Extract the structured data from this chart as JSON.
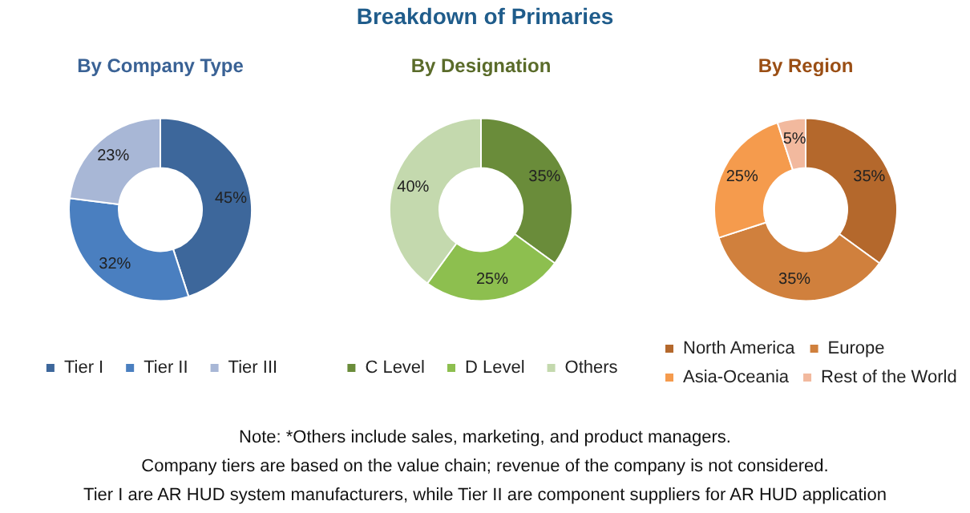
{
  "chart_data": [
    {
      "type": "other",
      "title": "Breakdown of Primaries",
      "annotations": [
        "Note: *Others include sales, marketing, and product managers.",
        "Company tiers are based on the value chain; revenue of the company is not considered.",
        "Tier I are AR HUD system manufacturers, while Tier II are component suppliers for AR HUD application"
      ]
    },
    {
      "type": "donut",
      "title": "By Company Type",
      "categories": [
        "Tier I",
        "Tier II",
        "Tier III"
      ],
      "values": [
        45,
        32,
        23
      ],
      "value_labels": [
        "45%",
        "32%",
        "23%"
      ],
      "colors": [
        "#3d679b",
        "#4a7fc0",
        "#a8b7d6"
      ],
      "legend": "bottom"
    },
    {
      "type": "donut",
      "title": "By Designation",
      "categories": [
        "C Level",
        "D Level",
        "Others"
      ],
      "values": [
        35,
        25,
        40
      ],
      "value_labels": [
        "35%",
        "25%",
        "40%"
      ],
      "colors": [
        "#6a8c3a",
        "#8dbf4f",
        "#c4d9ae"
      ],
      "legend": "bottom"
    },
    {
      "type": "donut",
      "title": "By Region",
      "categories": [
        "North America",
        "Europe",
        "Asia-Oceania",
        "Rest of the World"
      ],
      "values": [
        35,
        35,
        25,
        5
      ],
      "value_labels": [
        "35%",
        "35%",
        "25%",
        "5%"
      ],
      "colors": [
        "#b4682c",
        "#d0803d",
        "#f59b4d",
        "#f2b99e"
      ],
      "legend": "bottom"
    }
  ]
}
